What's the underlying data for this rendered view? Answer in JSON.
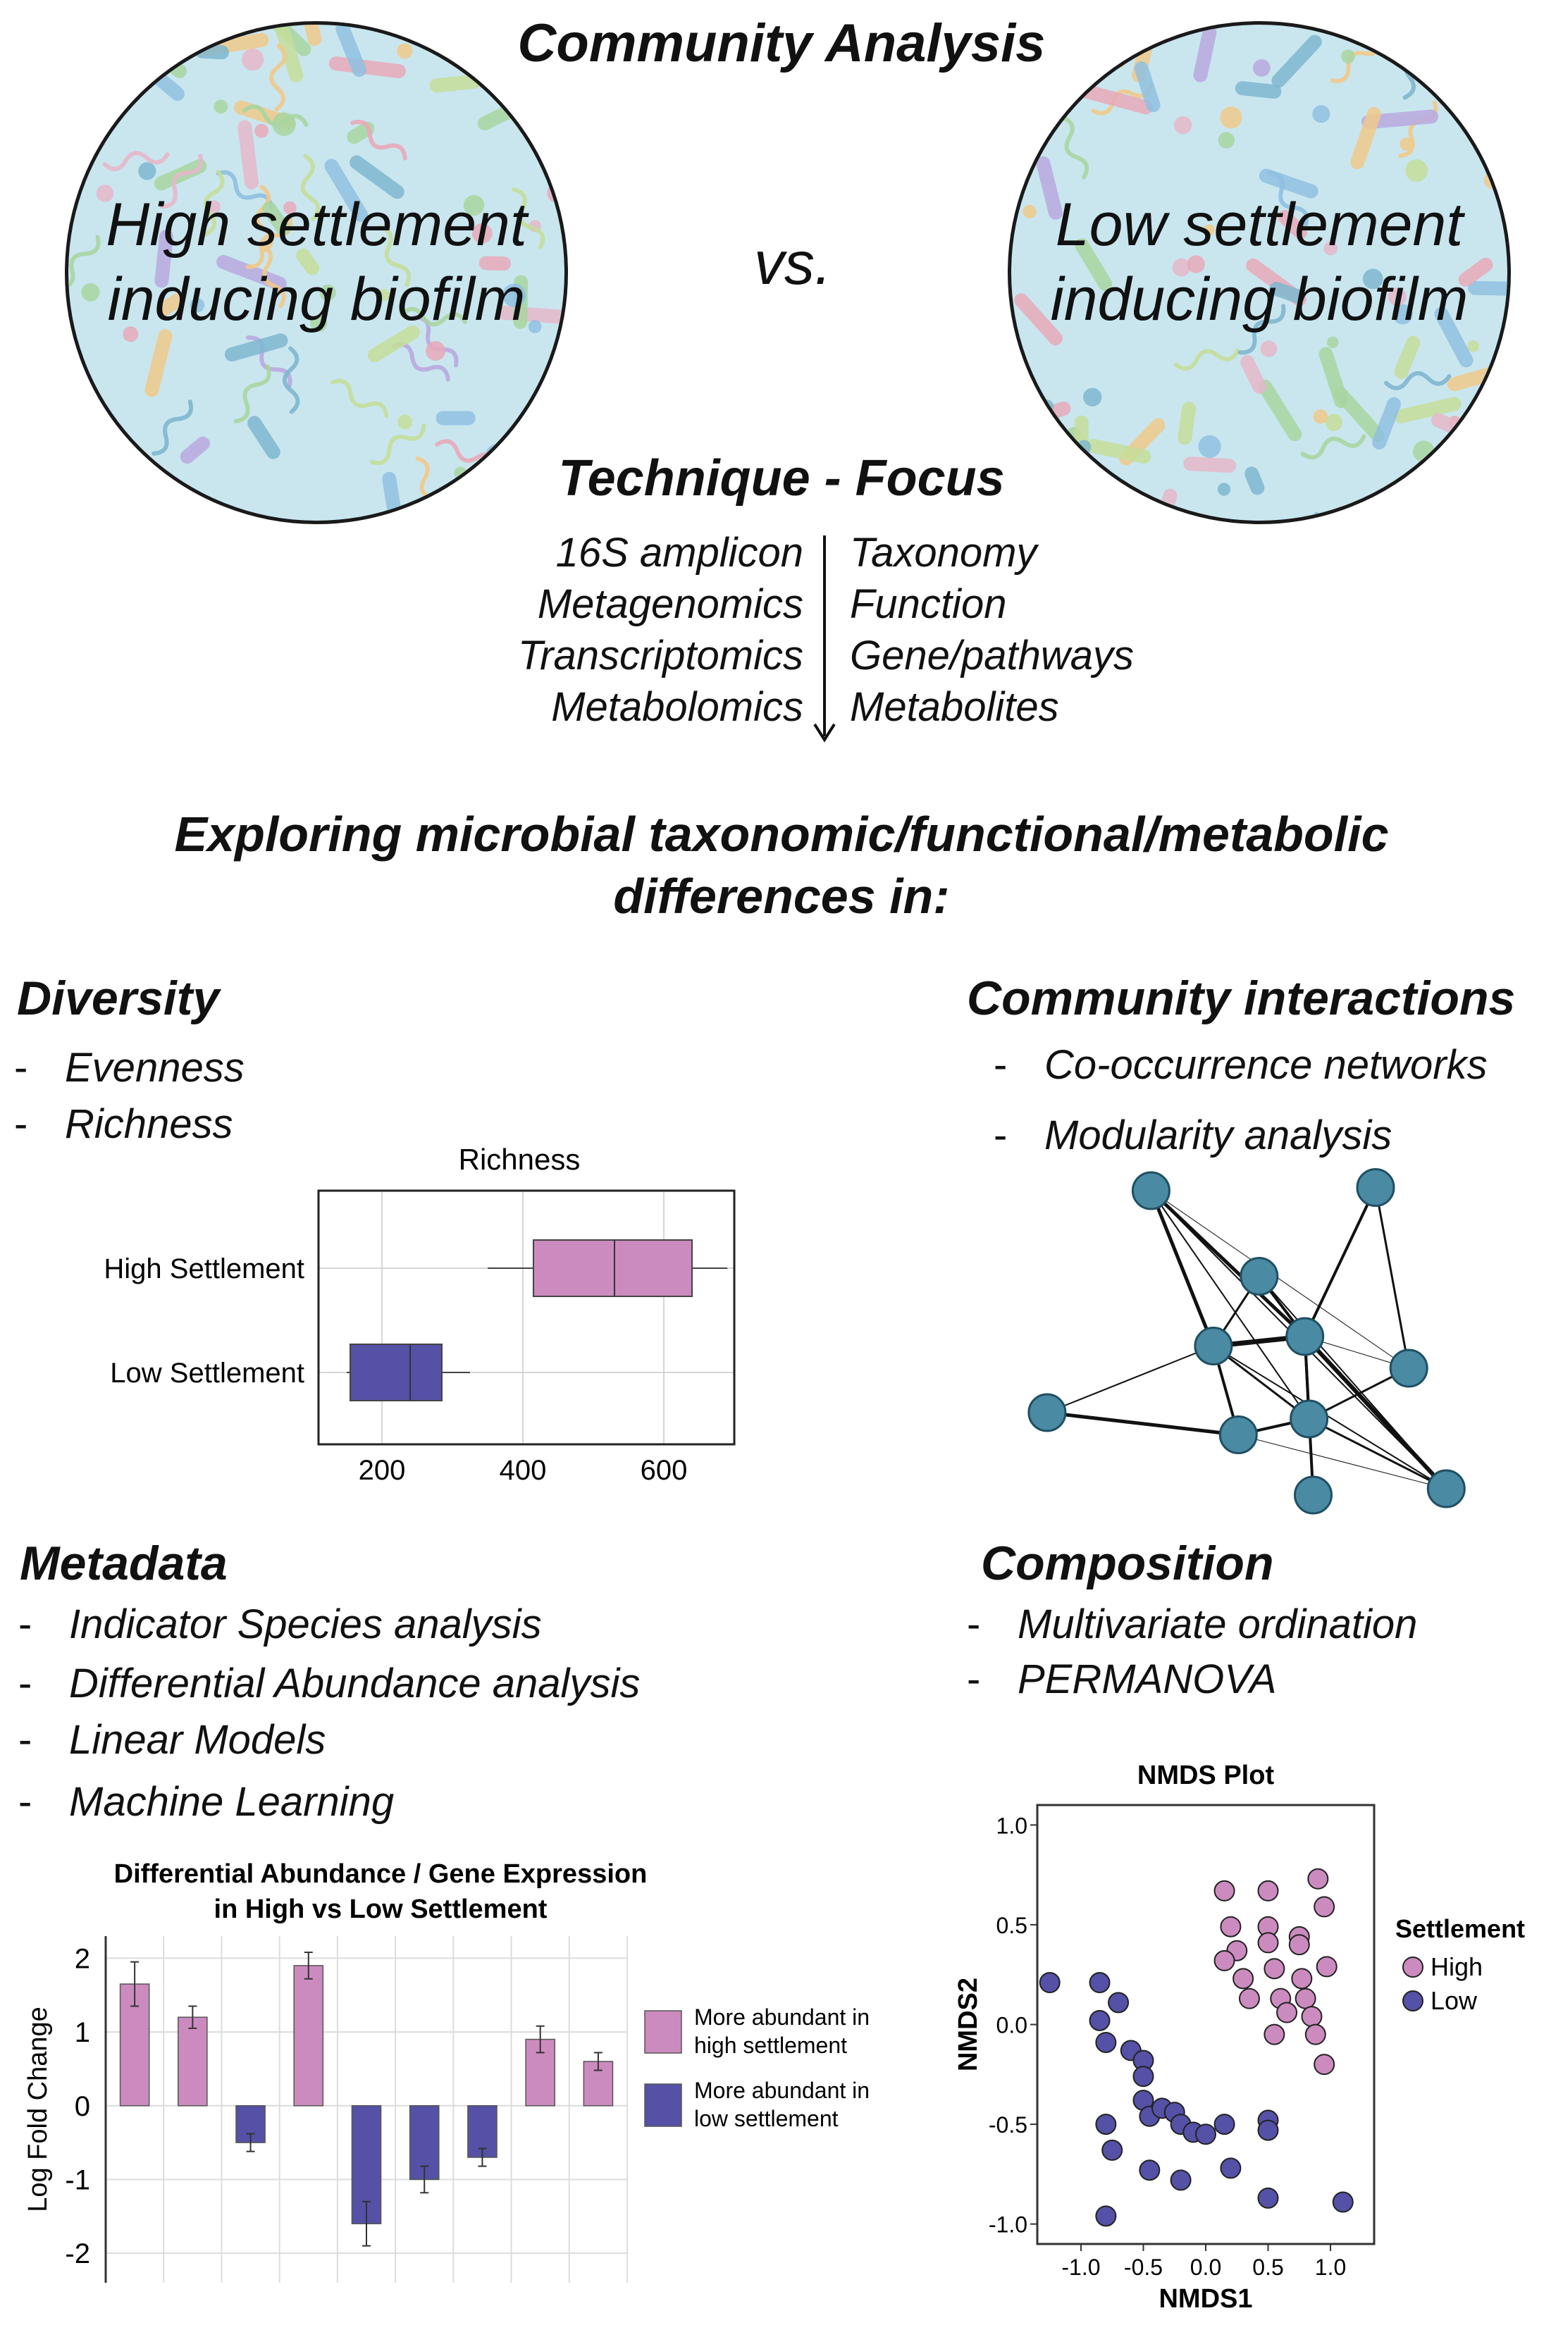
{
  "header": {
    "title": "Community Analysis",
    "vs": "vs.",
    "left_dish": [
      "High settlement",
      "inducing biofilm"
    ],
    "right_dish": [
      "Low settlement",
      "inducing biofilm"
    ]
  },
  "technique": {
    "title": "Technique - Focus",
    "techniques": [
      "16S amplicon",
      "Metagenomics",
      "Transcriptomics",
      "Metabolomics"
    ],
    "focus": [
      "Taxonomy",
      "Function",
      "Gene/pathways",
      "Metabolites"
    ]
  },
  "exploring": [
    "Exploring microbial taxonomic/functional/metabolic",
    "differences in:"
  ],
  "diversity": {
    "title": "Diversity",
    "bullets": [
      "Evenness",
      "Richness"
    ]
  },
  "interactions": {
    "title": "Community interactions",
    "bullets": [
      "Co-occurrence networks",
      "Modularity analysis"
    ]
  },
  "metadata": {
    "title": "Metadata",
    "bullets": [
      "Indicator Species analysis",
      "Differential Abundance analysis",
      "Linear Models",
      "Machine Learning"
    ]
  },
  "composition": {
    "title": "Composition",
    "bullets": [
      "Multivariate ordination",
      "PERMANOVA"
    ]
  },
  "colors": {
    "high": "#cc8bbf",
    "low": "#5451a6",
    "node": "#4a8aa3",
    "dish_bg": "#c9e6ef"
  },
  "chart_data": [
    {
      "type": "boxplot",
      "title": "Richness",
      "categories": [
        "High Settlement",
        "Low Settlement"
      ],
      "boxes": [
        {
          "name": "High Settlement",
          "whisker_low": 350,
          "q1": 415,
          "median": 530,
          "q3": 640,
          "whisker_high": 690
        },
        {
          "name": "Low Settlement",
          "whisker_low": 150,
          "q1": 155,
          "median": 240,
          "q3": 285,
          "whisker_high": 325
        }
      ],
      "x_ticks": [
        "200",
        "400",
        "600"
      ],
      "x_tick_values": [
        200,
        400,
        600
      ],
      "xlim": [
        110,
        700
      ],
      "grid": true
    },
    {
      "type": "bar",
      "title": [
        "Differential Abundance / Gene Expression",
        "in High vs Low Settlement"
      ],
      "ylabel": "Log Fold Change",
      "values": [
        1.65,
        1.2,
        -0.5,
        1.9,
        -1.6,
        -1.0,
        -0.7,
        0.9,
        0.6
      ],
      "errors": [
        0.3,
        0.15,
        0.12,
        0.18,
        0.3,
        0.18,
        0.12,
        0.18,
        0.12
      ],
      "y_ticks": [
        "2",
        "1",
        "0",
        "-1",
        "-2"
      ],
      "y_tick_values": [
        2,
        1,
        0,
        -1,
        -2
      ],
      "ylim": [
        -2.4,
        2.3
      ],
      "grid": true,
      "legend": [
        {
          "label": [
            "More abundant in",
            "high settlement"
          ],
          "color": "#cc8bbf"
        },
        {
          "label": [
            "More abundant in",
            "low settlement"
          ],
          "color": "#5451a6"
        }
      ],
      "legend_position": "right"
    },
    {
      "type": "network",
      "nodes": [
        {
          "id": 0,
          "x": 0.26,
          "y": 0.04
        },
        {
          "id": 1,
          "x": 0.8,
          "y": 0.03
        },
        {
          "id": 2,
          "x": 0.52,
          "y": 0.31
        },
        {
          "id": 3,
          "x": 0.41,
          "y": 0.53
        },
        {
          "id": 4,
          "x": 0.63,
          "y": 0.5
        },
        {
          "id": 5,
          "x": 0.88,
          "y": 0.6
        },
        {
          "id": 6,
          "x": 0.01,
          "y": 0.74
        },
        {
          "id": 7,
          "x": 0.47,
          "y": 0.81
        },
        {
          "id": 8,
          "x": 0.64,
          "y": 0.76
        },
        {
          "id": 9,
          "x": 0.65,
          "y": 1.0
        },
        {
          "id": 10,
          "x": 0.97,
          "y": 0.98
        }
      ],
      "edges": [
        [
          0,
          3,
          5
        ],
        [
          0,
          4,
          5
        ],
        [
          0,
          8,
          2
        ],
        [
          0,
          10,
          2
        ],
        [
          0,
          5,
          1
        ],
        [
          1,
          4,
          4
        ],
        [
          1,
          5,
          3
        ],
        [
          2,
          3,
          3
        ],
        [
          2,
          4,
          4
        ],
        [
          2,
          10,
          2
        ],
        [
          3,
          4,
          7
        ],
        [
          3,
          6,
          2
        ],
        [
          3,
          7,
          4
        ],
        [
          3,
          8,
          3
        ],
        [
          3,
          10,
          2
        ],
        [
          4,
          8,
          4
        ],
        [
          4,
          9,
          4
        ],
        [
          4,
          10,
          6
        ],
        [
          4,
          5,
          1
        ],
        [
          6,
          7,
          5
        ],
        [
          7,
          8,
          4
        ],
        [
          7,
          10,
          1
        ],
        [
          8,
          5,
          3
        ],
        [
          8,
          9,
          3
        ],
        [
          8,
          10,
          3
        ]
      ]
    },
    {
      "type": "scatter",
      "title": "NMDS Plot",
      "xlabel": "NMDS1",
      "ylabel": "NMDS2",
      "x_ticks": [
        "-1.0",
        "-0.5",
        "0.0",
        "0.5",
        "1.0"
      ],
      "x_tick_values": [
        -1.0,
        -0.5,
        0.0,
        0.5,
        1.0
      ],
      "y_ticks": [
        "1.0",
        "0.5",
        "0.0",
        "-0.5",
        "-1.0"
      ],
      "y_tick_values": [
        1.0,
        0.5,
        0.0,
        -0.5,
        -1.0
      ],
      "xlim": [
        -1.35,
        1.35
      ],
      "ylim": [
        -1.1,
        1.1
      ],
      "legend_title": "Settlement",
      "legend_position": "right",
      "series": [
        {
          "name": "High",
          "color": "#cc8bbf",
          "points": [
            [
              0.15,
              0.67
            ],
            [
              0.2,
              0.49
            ],
            [
              0.25,
              0.37
            ],
            [
              0.15,
              0.32
            ],
            [
              0.3,
              0.23
            ],
            [
              0.35,
              0.13
            ],
            [
              0.5,
              0.67
            ],
            [
              0.5,
              0.49
            ],
            [
              0.55,
              0.28
            ],
            [
              0.6,
              0.13
            ],
            [
              0.55,
              -0.05
            ],
            [
              0.65,
              0.06
            ],
            [
              0.75,
              0.44
            ],
            [
              0.75,
              0.4
            ],
            [
              0.77,
              0.23
            ],
            [
              0.8,
              0.13
            ],
            [
              0.9,
              0.73
            ],
            [
              0.95,
              0.59
            ],
            [
              0.97,
              0.29
            ],
            [
              0.85,
              0.04
            ],
            [
              0.88,
              -0.05
            ],
            [
              0.95,
              -0.2
            ],
            [
              0.5,
              0.41
            ]
          ]
        },
        {
          "name": "Low",
          "color": "#5451a6",
          "points": [
            [
              -1.25,
              0.21
            ],
            [
              -0.85,
              0.21
            ],
            [
              -0.7,
              0.11
            ],
            [
              -0.85,
              0.02
            ],
            [
              -0.8,
              -0.09
            ],
            [
              -0.6,
              -0.13
            ],
            [
              -0.5,
              -0.18
            ],
            [
              -0.5,
              -0.26
            ],
            [
              -0.5,
              -0.38
            ],
            [
              -0.45,
              -0.46
            ],
            [
              -0.35,
              -0.42
            ],
            [
              -0.25,
              -0.44
            ],
            [
              -0.2,
              -0.5
            ],
            [
              -0.1,
              -0.54
            ],
            [
              0.0,
              -0.55
            ],
            [
              0.15,
              -0.5
            ],
            [
              0.5,
              -0.48
            ],
            [
              0.5,
              -0.53
            ],
            [
              -0.8,
              -0.5
            ],
            [
              -0.75,
              -0.63
            ],
            [
              -0.45,
              -0.73
            ],
            [
              -0.2,
              -0.78
            ],
            [
              0.2,
              -0.72
            ],
            [
              0.5,
              -0.87
            ],
            [
              1.1,
              -0.89
            ],
            [
              -0.8,
              -0.96
            ]
          ]
        }
      ]
    }
  ]
}
